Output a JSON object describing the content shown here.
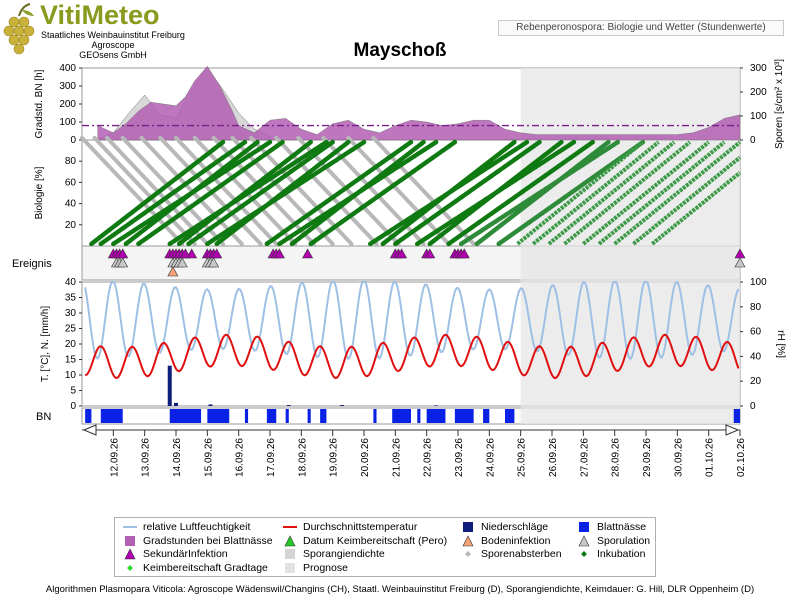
{
  "header": {
    "logo": "VitiMeteo",
    "org_lines": [
      "Staatliches Weinbauinstitut Freiburg",
      "Agroscope",
      "GEOsens GmbH"
    ],
    "subtitle": "Rebenperonospora: Biologie und Wetter (Stundenwerte)",
    "title": "Mayschoß"
  },
  "footer": "Algorithmen Plasmopara Viticola: Agroscope Wädenswil/Changins (CH), Staatl. Weinbauinstitut Freiburg (D), Sporangiendichte, Keimdauer: G. Hill, DLR Oppenheim (D)",
  "colors": {
    "humidity": "#9ec0e4",
    "temperature": "#e01010",
    "precipitation": "#0d1f7a",
    "leaf_wetness": "#0a22e6",
    "degree_hours": "#b35fb3",
    "sporangia": "#d4d4d4",
    "spore_release": "#b8b8b8",
    "incubation": "#0f7a12",
    "secondary_infection": "#b000b0",
    "forecast_shade": "#e6e6e6"
  },
  "legend": [
    {
      "label": "relative Luftfeuchtigkeit",
      "icon": "line-light-blue"
    },
    {
      "label": "Durchschnittstemperatur",
      "icon": "line-red"
    },
    {
      "label": "Niederschläge",
      "icon": "square-dark-blue"
    },
    {
      "label": "Blattnässe",
      "icon": "square-blue"
    },
    {
      "label": "Gradstunden bei Blattnässe",
      "icon": "square-purple"
    },
    {
      "label": "Datum Keimbereitschaft (Pero)",
      "icon": "triangle-green"
    },
    {
      "label": "Bodeninfektion",
      "icon": "triangle-orange"
    },
    {
      "label": "Sporulation",
      "icon": "triangle-gray"
    },
    {
      "label": "SekundärInfektion",
      "icon": "triangle-magenta"
    },
    {
      "label": "Sporangiendichte",
      "icon": "square-light-gray"
    },
    {
      "label": "Sporenabsterben",
      "icon": "diamond-gray"
    },
    {
      "label": "Inkubation",
      "icon": "diamond-green"
    },
    {
      "label": "Keimbereitschaft Gradtage",
      "icon": "diamond-light-green"
    },
    {
      "label": "Prognose",
      "icon": "square-forecast-gray"
    }
  ],
  "chart_data": {
    "type": "line",
    "x_ticks": [
      "12.09.26",
      "13.09.26",
      "14.09.26",
      "15.09.26",
      "16.09.26",
      "17.09.26",
      "18.09.26",
      "19.09.26",
      "20.09.26",
      "21.09.26",
      "22.09.26",
      "23.09.26",
      "24.09.26",
      "25.09.26",
      "26.09.26",
      "27.09.26",
      "28.09.26",
      "29.09.26",
      "30.09.26",
      "01.10.26",
      "02.10.26"
    ],
    "forecast_start": "25.09.26",
    "panels": {
      "degree_hours": {
        "ylabel_left": "Gradstd. BN [h]",
        "ylabel_right": "Sporen [s/cm² x 10³]",
        "left_ticks": [
          "0",
          "100",
          "200",
          "300",
          "400"
        ],
        "right_ticks": [
          "0",
          "100",
          "200",
          "300"
        ],
        "ylim_left": [
          0,
          400
        ],
        "ylim_right": [
          0,
          300
        ],
        "series": [
          {
            "name": "Gradstunden bei Blattnässe",
            "x": [
              11.5,
              12,
              12.4,
              12.8,
              13.2,
              13.6,
              14.0,
              14.3,
              14.6,
              15.0,
              15.4,
              15.8,
              16.0,
              16.5,
              17.0,
              17.5,
              18.0,
              18.5,
              19.0,
              19.5,
              20.0,
              20.5,
              21.0,
              21.5,
              22.0,
              22.5,
              23.0,
              23.5,
              24.0,
              24.5,
              25.0,
              25.5,
              26.0,
              26.5,
              27.0,
              27.5,
              28.0,
              28.5,
              29.0,
              29.5,
              30.0,
              30.5,
              31.0,
              31.5,
              32.0
            ],
            "y": [
              80,
              40,
              90,
              160,
              210,
              200,
              190,
              240,
              330,
              410,
              300,
              160,
              80,
              40,
              110,
              120,
              60,
              30,
              90,
              110,
              60,
              40,
              80,
              110,
              100,
              80,
              90,
              110,
              110,
              60,
              40,
              30,
              30,
              30,
              30,
              30,
              30,
              30,
              30,
              30,
              30,
              40,
              70,
              120,
              140
            ]
          },
          {
            "name": "Sporangiendichte",
            "x": [
              11.5,
              12,
              12.5,
              13.0,
              13.5,
              14.0,
              14.5,
              15.0,
              15.5,
              16.0,
              16.5,
              17.0
            ],
            "y": [
              0,
              40,
              150,
              250,
              140,
              120,
              280,
              400,
              280,
              150,
              60,
              20
            ]
          }
        ]
      },
      "biology": {
        "ylabel": "Biologie [%]",
        "ticks": [
          "20",
          "40",
          "60",
          "80"
        ],
        "ylim": [
          0,
          100
        ]
      },
      "events": {
        "label": "Ereignis",
        "secondary_infection_x": [
          12.0,
          12.1,
          12.2,
          12.3,
          13.8,
          13.9,
          14.0,
          14.1,
          14.2,
          14.3,
          14.5,
          15.0,
          15.1,
          15.2,
          15.3,
          17.1,
          17.2,
          17.3,
          18.2,
          21.0,
          21.1,
          21.2,
          22.0,
          22.1,
          22.9,
          23.0,
          23.1,
          23.2,
          32.0
        ],
        "sporulation_x": [
          12.1,
          12.2,
          12.3,
          13.9,
          14.0,
          14.1,
          14.2,
          15.0,
          15.1,
          15.2,
          32.0
        ],
        "soil_infection_x": [
          13.9
        ]
      },
      "weather": {
        "ylabel_left": "T. [°C], N. [mm/h]",
        "ylabel_right": "rH [%]",
        "left_ticks": [
          "0",
          "5",
          "10",
          "15",
          "20",
          "25",
          "30",
          "35",
          "40"
        ],
        "right_ticks": [
          "0",
          "20",
          "40",
          "60",
          "80",
          "100"
        ],
        "ylim_left": [
          0,
          40
        ],
        "ylim_right": [
          0,
          100
        ],
        "temperature_mean_c": 16,
        "humidity_range_pct": [
          40,
          100
        ],
        "precipitation": {
          "x": [
            13.8,
            14.0,
            15.1,
            17.6,
            19.3,
            22.3
          ],
          "y": [
            13,
            1,
            0.5,
            0.3,
            0.3,
            0.2
          ]
        }
      },
      "leaf_wetness": {
        "label": "BN",
        "intervals": [
          [
            11.1,
            11.3
          ],
          [
            11.6,
            12.3
          ],
          [
            13.8,
            14.8
          ],
          [
            15.0,
            15.7
          ],
          [
            16.2,
            16.3
          ],
          [
            16.9,
            17.2
          ],
          [
            17.5,
            17.6
          ],
          [
            18.2,
            18.3
          ],
          [
            18.6,
            18.8
          ],
          [
            20.3,
            20.4
          ],
          [
            20.9,
            21.5
          ],
          [
            21.7,
            21.8
          ],
          [
            22.0,
            22.6
          ],
          [
            22.9,
            23.5
          ],
          [
            23.8,
            24.0
          ],
          [
            24.5,
            24.8
          ],
          [
            31.8,
            32.0
          ]
        ]
      }
    }
  }
}
